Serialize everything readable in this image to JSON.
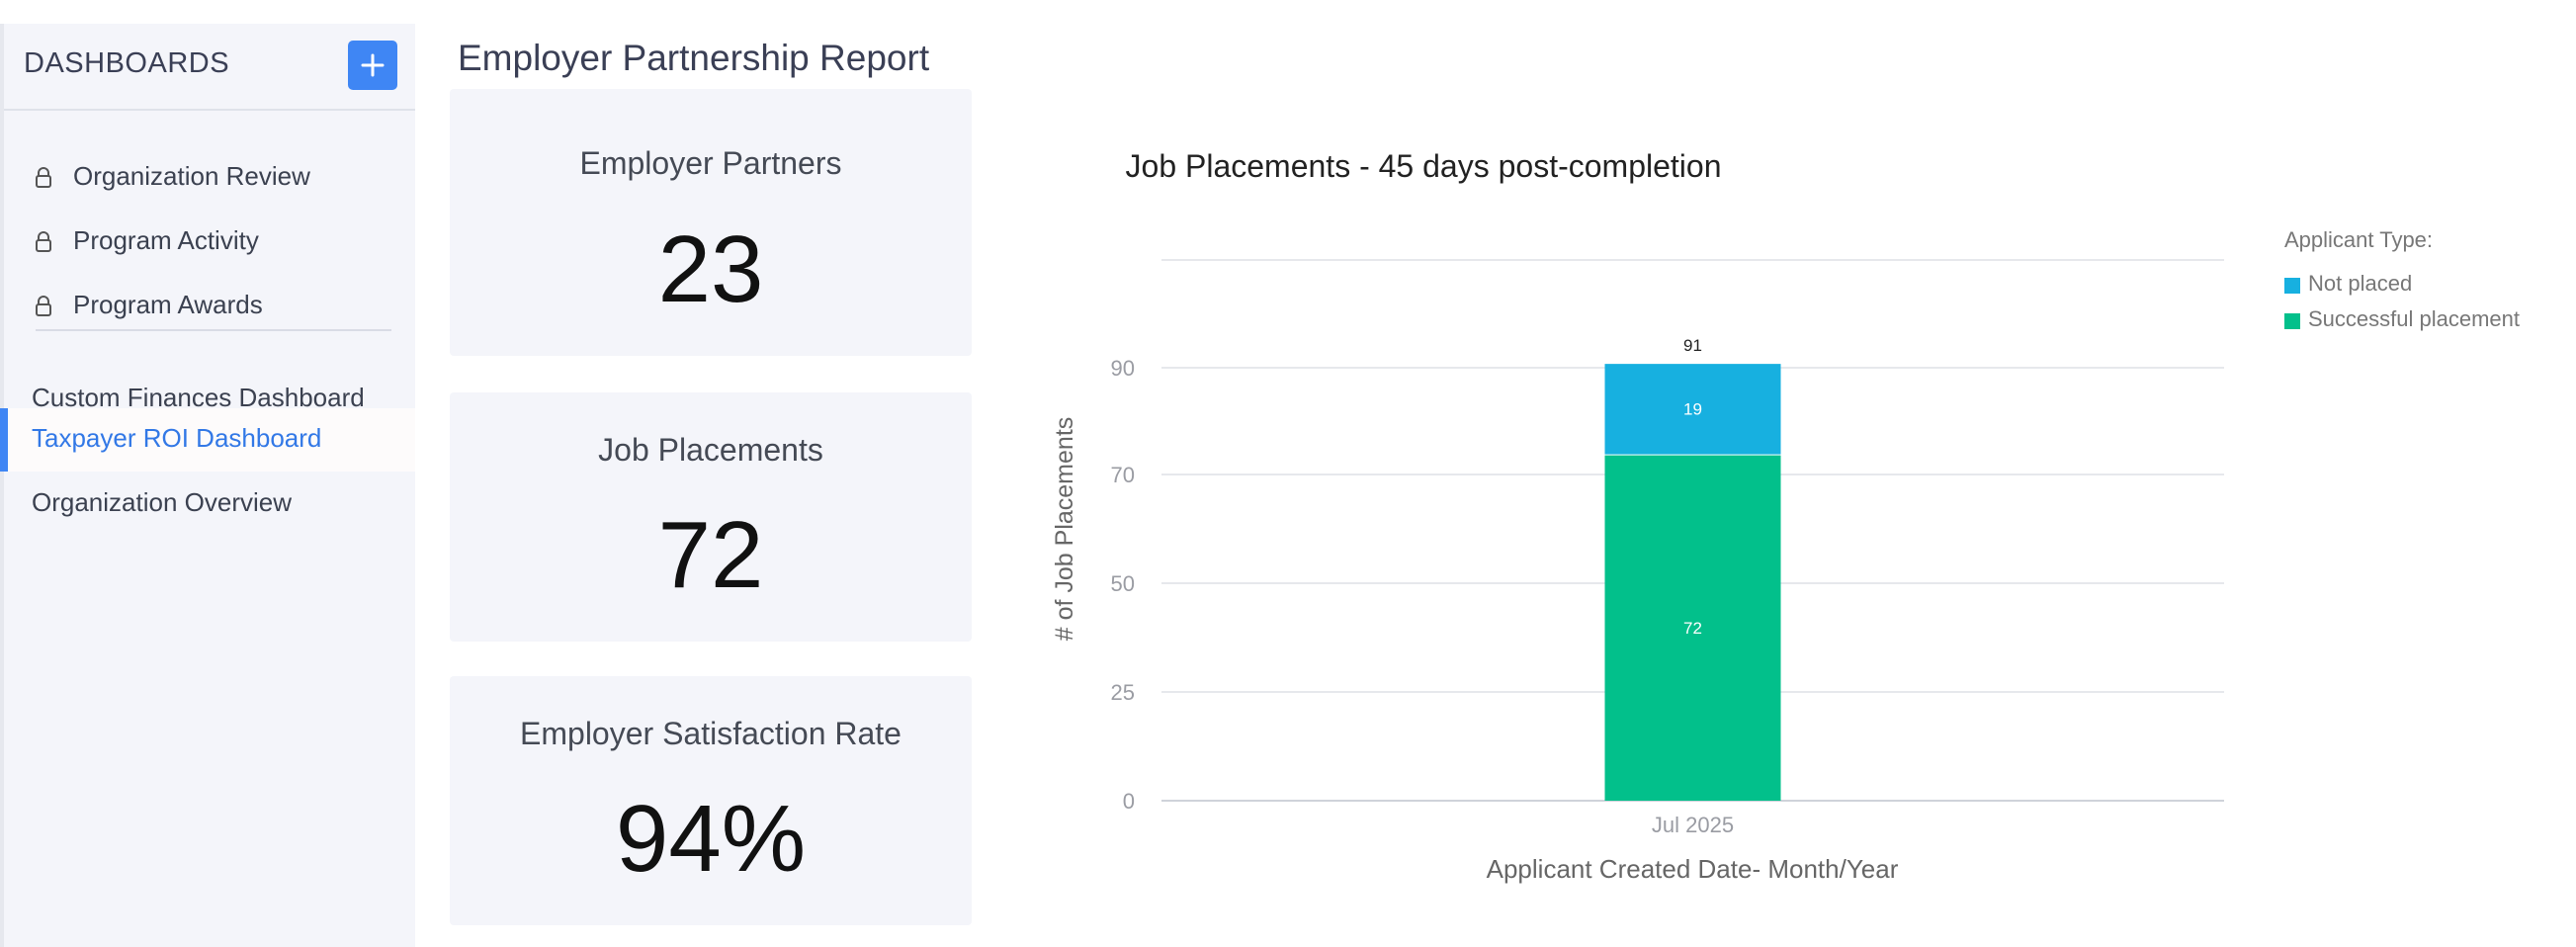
{
  "sidebar": {
    "title": "DASHBOARDS",
    "add_icon": "plus-icon",
    "items": [
      {
        "label": "Organization Review",
        "locked": true
      },
      {
        "label": "Program Activity",
        "locked": true
      },
      {
        "label": "Program Awards",
        "locked": true
      },
      {
        "label": "Custom Finances Dashboard",
        "locked": false
      },
      {
        "label": "Taxpayer ROI Dashboard",
        "locked": false,
        "active": true
      },
      {
        "label": "Organization Overview",
        "locked": false
      }
    ]
  },
  "page": {
    "title": "Employer Partnership Report"
  },
  "cards": [
    {
      "label": "Employer Partners",
      "value": "23"
    },
    {
      "label": "Job Placements",
      "value": "72"
    },
    {
      "label": "Employer Satisfaction Rate",
      "value": "94%"
    }
  ],
  "colors": {
    "accent": "#3f86f4",
    "not_placed": "#17b0e0",
    "successful_placement": "#02c08b"
  },
  "chart_data": {
    "type": "bar",
    "stacked": true,
    "title": "Job Placements - 45 days post-completion",
    "xlabel": "Applicant Created Date- Month/Year",
    "ylabel": "# of Job Placements",
    "categories": [
      "Jul 2025"
    ],
    "yticks": [
      0,
      25,
      50,
      70,
      90
    ],
    "ylim": [
      0,
      100
    ],
    "legend_title": "Applicant Type:",
    "legend_position": "top-right",
    "grid": true,
    "series": [
      {
        "name": "Successful placement",
        "values": [
          72
        ],
        "color": "#02c08b"
      },
      {
        "name": "Not placed",
        "values": [
          19
        ],
        "color": "#17b0e0"
      }
    ],
    "totals": [
      91
    ]
  }
}
